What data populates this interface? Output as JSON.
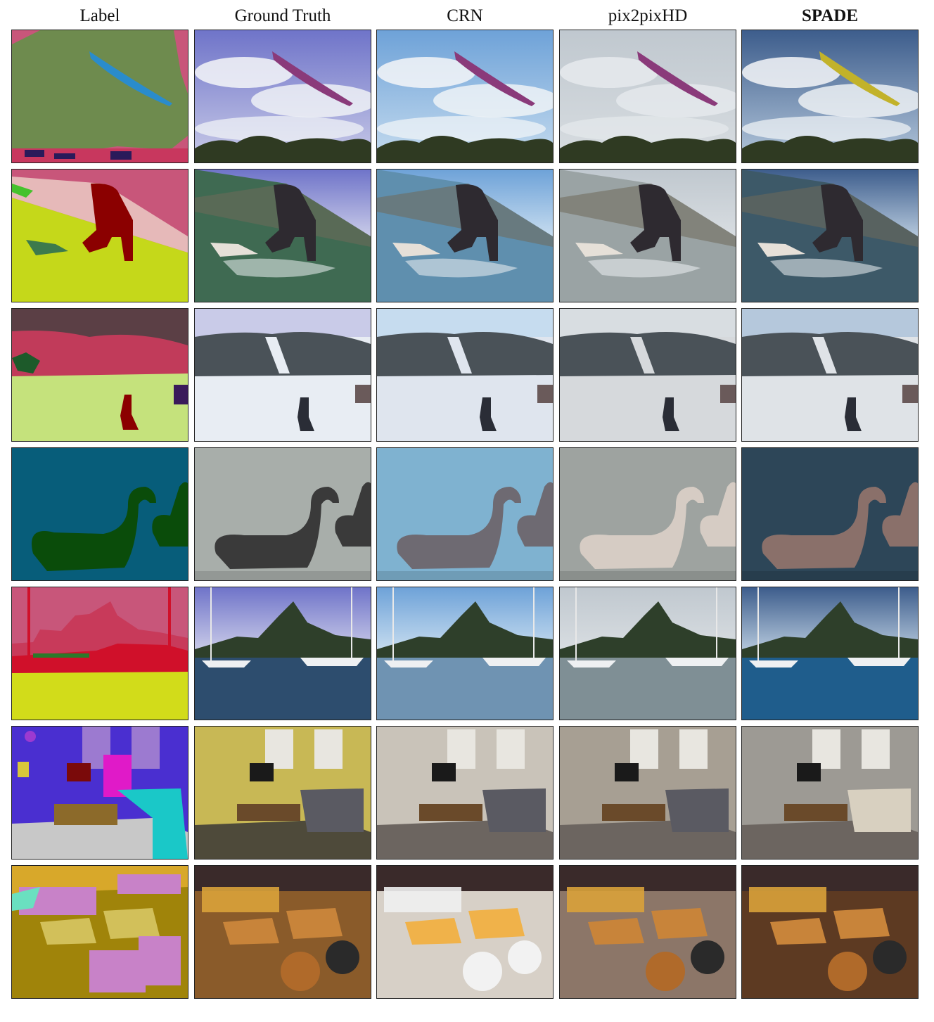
{
  "figure": {
    "columns": [
      {
        "key": "label",
        "title": "Label",
        "bold": false
      },
      {
        "key": "gt",
        "title": "Ground Truth",
        "bold": false
      },
      {
        "key": "crn",
        "title": "CRN",
        "bold": false
      },
      {
        "key": "pix2pixhd",
        "title": "pix2pixHD",
        "bold": false
      },
      {
        "key": "spade",
        "title": "SPADE",
        "bold": true
      }
    ],
    "rows": [
      {
        "scene": "kite"
      },
      {
        "scene": "surfer"
      },
      {
        "scene": "ski"
      },
      {
        "scene": "swans"
      },
      {
        "scene": "harbor"
      },
      {
        "scene": "living-room"
      },
      {
        "scene": "pizza-and-beer"
      }
    ]
  }
}
